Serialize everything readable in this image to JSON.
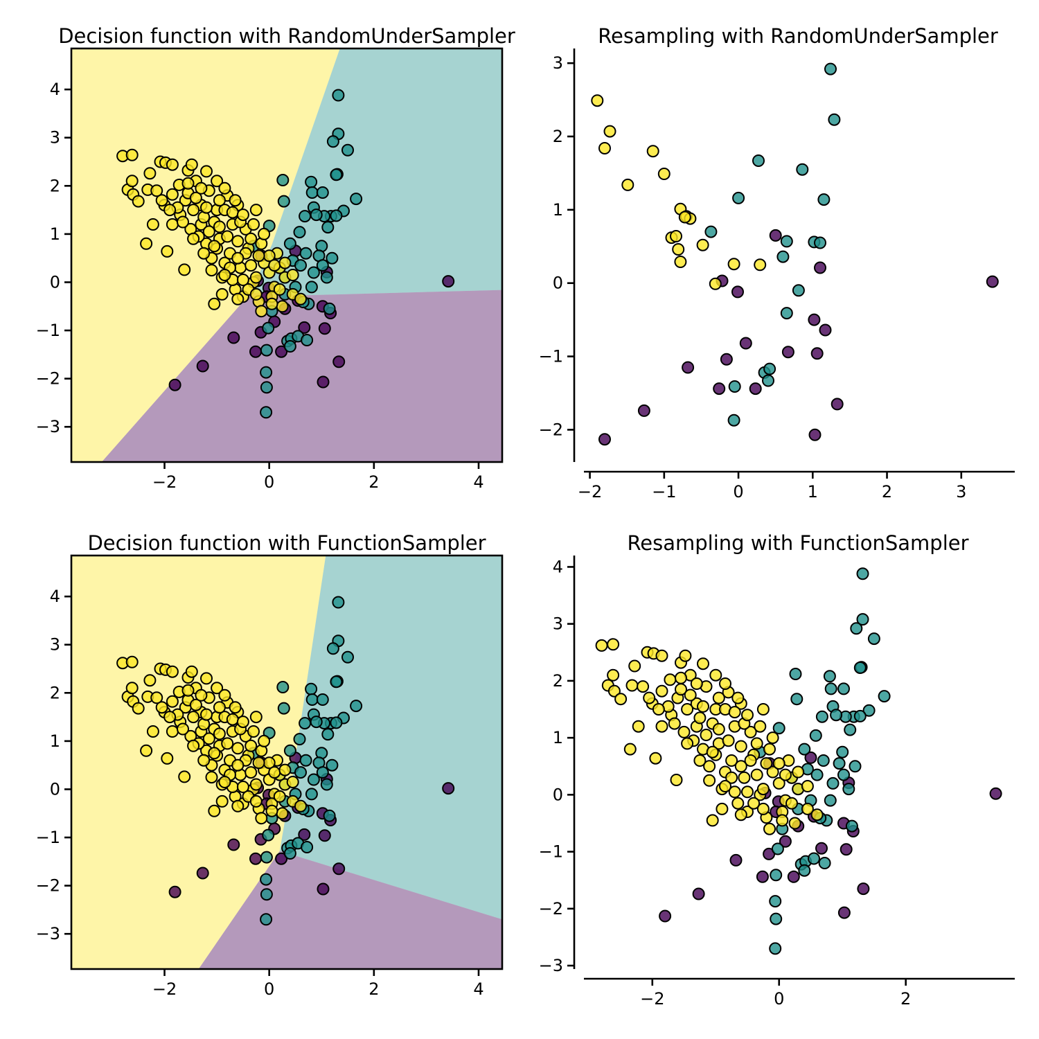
{
  "colors": {
    "class0": "#440154",
    "class1": "#21918c",
    "class2": "#fde725"
  },
  "chart_data": [
    {
      "type": "scatter",
      "id": "tl",
      "title": "Decision function with RandomUnderSampler",
      "boxed": true,
      "xlim": [
        -3.78,
        4.45
      ],
      "ylim": [
        -3.73,
        4.85
      ],
      "xticks": [
        -2,
        0,
        2,
        4
      ],
      "yticks": [
        -3,
        -2,
        -1,
        0,
        1,
        2,
        3,
        4
      ],
      "background_regions": [
        {
          "class": 2,
          "polygon": [
            [
              -3.78,
              -3.73
            ],
            [
              -3.78,
              4.85
            ],
            [
              1.35,
              4.85
            ],
            [
              0.05,
              0.78
            ],
            [
              -0.35,
              -0.22
            ],
            [
              -3.2,
              -3.73
            ]
          ]
        },
        {
          "class": 1,
          "polygon": [
            [
              1.35,
              4.85
            ],
            [
              4.45,
              4.85
            ],
            [
              4.45,
              -0.16
            ],
            [
              0.7,
              -0.27
            ],
            [
              -0.35,
              -0.22
            ],
            [
              0.05,
              0.78
            ]
          ]
        },
        {
          "class": 0,
          "polygon": [
            [
              -3.2,
              -3.73
            ],
            [
              -0.35,
              -0.22
            ],
            [
              0.7,
              -0.27
            ],
            [
              4.45,
              -0.16
            ],
            [
              4.45,
              -3.73
            ]
          ]
        }
      ],
      "dataset": "full"
    },
    {
      "type": "scatter",
      "id": "tr",
      "title": "Resampling with RandomUnderSampler",
      "boxed": false,
      "xlim": [
        -2.08,
        3.72
      ],
      "ylim": [
        -2.44,
        3.2
      ],
      "xticks": [
        -2,
        -1,
        0,
        1,
        2,
        3
      ],
      "yticks": [
        -2,
        -1,
        0,
        1,
        2,
        3
      ],
      "series": [
        {
          "name": "class 0",
          "class": 0,
          "points": [
            [
              -0.22,
              0.03
            ],
            [
              -0.01,
              -0.12
            ],
            [
              0.5,
              0.65
            ],
            [
              1.1,
              0.21
            ],
            [
              1.17,
              -0.64
            ],
            [
              1.02,
              -0.5
            ],
            [
              0.1,
              -0.82
            ],
            [
              -0.16,
              -1.04
            ],
            [
              0.67,
              -0.94
            ],
            [
              1.06,
              -0.96
            ],
            [
              -0.68,
              -1.15
            ],
            [
              -0.26,
              -1.44
            ],
            [
              0.23,
              -1.44
            ],
            [
              -1.27,
              -1.74
            ],
            [
              1.33,
              -1.65
            ],
            [
              -1.8,
              -2.13
            ],
            [
              1.03,
              -2.07
            ],
            [
              3.42,
              0.02
            ]
          ]
        },
        {
          "name": "class 1",
          "class": 1,
          "points": [
            [
              1.24,
              2.92
            ],
            [
              1.29,
              2.23
            ],
            [
              0.27,
              1.67
            ],
            [
              0.86,
              1.55
            ],
            [
              0.0,
              1.16
            ],
            [
              1.15,
              1.14
            ],
            [
              -0.37,
              0.7
            ],
            [
              0.65,
              0.57
            ],
            [
              1.02,
              0.56
            ],
            [
              1.1,
              0.55
            ],
            [
              0.6,
              0.36
            ],
            [
              0.81,
              -0.1
            ],
            [
              0.65,
              -0.41
            ],
            [
              0.35,
              -1.22
            ],
            [
              0.42,
              -1.17
            ],
            [
              0.4,
              -1.33
            ],
            [
              -0.05,
              -1.41
            ],
            [
              -0.06,
              -1.87
            ]
          ]
        },
        {
          "name": "class 2",
          "class": 2,
          "points": [
            [
              -1.9,
              2.49
            ],
            [
              -1.8,
              1.84
            ],
            [
              -1.73,
              2.07
            ],
            [
              -1.15,
              1.8
            ],
            [
              -1.0,
              1.49
            ],
            [
              -1.49,
              1.34
            ],
            [
              -0.78,
              1.01
            ],
            [
              -0.7,
              0.91
            ],
            [
              -0.65,
              0.88
            ],
            [
              -0.9,
              0.62
            ],
            [
              -0.81,
              0.46
            ],
            [
              -0.78,
              0.29
            ],
            [
              -0.48,
              0.52
            ],
            [
              -0.84,
              0.64
            ],
            [
              -0.31,
              -0.01
            ],
            [
              -0.06,
              0.26
            ],
            [
              0.29,
              0.25
            ],
            [
              -0.72,
              0.9
            ]
          ]
        }
      ]
    },
    {
      "type": "scatter",
      "id": "bl",
      "title": "Decision function with FunctionSampler",
      "boxed": true,
      "xlim": [
        -3.78,
        4.45
      ],
      "ylim": [
        -3.73,
        4.85
      ],
      "xticks": [
        -2,
        0,
        2,
        4
      ],
      "yticks": [
        -3,
        -2,
        -1,
        0,
        1,
        2,
        3,
        4
      ],
      "background_regions": [
        {
          "class": 2,
          "polygon": [
            [
              -3.78,
              -3.73
            ],
            [
              -3.78,
              4.85
            ],
            [
              1.08,
              4.85
            ],
            [
              0.45,
              0.3
            ],
            [
              0.2,
              -1.28
            ],
            [
              -1.35,
              -3.73
            ]
          ]
        },
        {
          "class": 1,
          "polygon": [
            [
              1.08,
              4.85
            ],
            [
              4.45,
              4.85
            ],
            [
              4.45,
              -2.7
            ],
            [
              0.2,
              -1.28
            ],
            [
              0.45,
              0.3
            ]
          ]
        },
        {
          "class": 0,
          "polygon": [
            [
              -1.35,
              -3.73
            ],
            [
              0.2,
              -1.28
            ],
            [
              4.45,
              -2.7
            ],
            [
              4.45,
              -3.73
            ]
          ]
        }
      ],
      "dataset": "full"
    },
    {
      "type": "scatter",
      "id": "br",
      "title": "Resampling with FunctionSampler",
      "boxed": false,
      "xlim": [
        -3.08,
        3.72
      ],
      "ylim": [
        -3.06,
        4.2
      ],
      "xticks": [
        -2,
        0,
        2
      ],
      "yticks": [
        -3,
        -2,
        -1,
        0,
        1,
        2,
        3,
        4
      ],
      "dataset": "full"
    }
  ],
  "full_dataset": {
    "class0": [
      [
        3.42,
        0.02
      ],
      [
        -0.22,
        0.03
      ],
      [
        1.1,
        0.21
      ],
      [
        0.5,
        0.65
      ],
      [
        -0.01,
        -0.12
      ],
      [
        1.17,
        -0.64
      ],
      [
        1.02,
        -0.5
      ],
      [
        0.1,
        -0.82
      ],
      [
        -0.16,
        -1.04
      ],
      [
        0.67,
        -0.94
      ],
      [
        1.06,
        -0.96
      ],
      [
        -0.68,
        -1.15
      ],
      [
        -0.26,
        -1.44
      ],
      [
        0.23,
        -1.44
      ],
      [
        -1.27,
        -1.74
      ],
      [
        1.33,
        -1.65
      ],
      [
        -1.8,
        -2.13
      ],
      [
        1.03,
        -2.07
      ],
      [
        -0.05,
        -0.3
      ],
      [
        0.55,
        -0.38
      ],
      [
        0.3,
        -0.55
      ],
      [
        -0.15,
        0.55
      ]
    ],
    "class1": [
      [
        1.32,
        3.88
      ],
      [
        1.32,
        3.08
      ],
      [
        1.22,
        2.92
      ],
      [
        1.5,
        2.74
      ],
      [
        1.3,
        2.24
      ],
      [
        1.28,
        2.23
      ],
      [
        0.26,
        2.12
      ],
      [
        0.8,
        2.08
      ],
      [
        0.82,
        1.86
      ],
      [
        0.28,
        1.68
      ],
      [
        1.02,
        1.86
      ],
      [
        1.66,
        1.73
      ],
      [
        0.85,
        1.55
      ],
      [
        1.42,
        1.48
      ],
      [
        1.18,
        1.37
      ],
      [
        0.68,
        1.37
      ],
      [
        1.05,
        1.37
      ],
      [
        1.28,
        1.38
      ],
      [
        0.0,
        1.17
      ],
      [
        1.12,
        1.14
      ],
      [
        0.58,
        1.04
      ],
      [
        0.2,
        0.3
      ],
      [
        0.4,
        0.8
      ],
      [
        1.0,
        0.75
      ],
      [
        0.7,
        0.6
      ],
      [
        1.2,
        0.5
      ],
      [
        0.85,
        0.2
      ],
      [
        0.45,
        0.45
      ],
      [
        0.95,
        0.55
      ],
      [
        0.6,
        0.35
      ],
      [
        0.3,
        0.1
      ],
      [
        1.1,
        0.1
      ],
      [
        0.5,
        -0.1
      ],
      [
        0.75,
        -0.45
      ],
      [
        0.3,
        -0.25
      ],
      [
        1.02,
        0.35
      ],
      [
        0.65,
        -0.41
      ],
      [
        0.81,
        -0.1
      ],
      [
        0.35,
        -1.22
      ],
      [
        0.42,
        -1.17
      ],
      [
        0.4,
        -1.33
      ],
      [
        -0.05,
        -1.41
      ],
      [
        -0.06,
        -1.87
      ],
      [
        -0.05,
        -2.18
      ],
      [
        -0.06,
        -2.7
      ],
      [
        0.55,
        -1.12
      ],
      [
        0.72,
        -1.2
      ],
      [
        -0.02,
        -0.95
      ],
      [
        -0.3,
        0.75
      ],
      [
        0.05,
        -0.6
      ],
      [
        0.9,
        1.4
      ],
      [
        1.15,
        -0.55
      ]
    ],
    "class2": [
      [
        -2.8,
        2.62
      ],
      [
        -2.62,
        2.64
      ],
      [
        -2.7,
        1.92
      ],
      [
        -2.62,
        2.1
      ],
      [
        -2.6,
        1.82
      ],
      [
        -2.5,
        1.68
      ],
      [
        -2.32,
        1.92
      ],
      [
        -2.28,
        2.26
      ],
      [
        -2.22,
        1.2
      ],
      [
        -2.35,
        0.8
      ],
      [
        -2.08,
        2.5
      ],
      [
        -1.98,
        2.48
      ],
      [
        -1.85,
        2.44
      ],
      [
        -2.0,
        1.6
      ],
      [
        -1.85,
        1.82
      ],
      [
        -1.95,
        0.64
      ],
      [
        -1.72,
        2.02
      ],
      [
        -1.62,
        0.26
      ],
      [
        -1.55,
        2.32
      ],
      [
        -1.48,
        2.44
      ],
      [
        -1.4,
        2.1
      ],
      [
        -1.3,
        1.2
      ],
      [
        -1.15,
        1.9
      ],
      [
        -1.0,
        1.5
      ],
      [
        -1.2,
        0.8
      ],
      [
        -1.7,
        1.4
      ],
      [
        -1.5,
        1.1
      ],
      [
        -1.3,
        1.6
      ],
      [
        -1.1,
        0.5
      ],
      [
        -0.95,
        0.9
      ],
      [
        -0.85,
        0.4
      ],
      [
        -0.8,
        1.8
      ],
      [
        -0.7,
        1.2
      ],
      [
        -0.6,
        1.6
      ],
      [
        -0.55,
        0.3
      ],
      [
        -0.4,
        0.7
      ],
      [
        -0.25,
        1.5
      ],
      [
        -0.3,
        0.0
      ],
      [
        -0.1,
        0.4
      ],
      [
        0.0,
        0.2
      ],
      [
        0.1,
        -0.1
      ],
      [
        0.3,
        0.1
      ],
      [
        -0.5,
        -0.3
      ],
      [
        -0.2,
        -0.4
      ],
      [
        0.05,
        -0.3
      ],
      [
        -0.9,
        0.1
      ],
      [
        -1.05,
        -0.45
      ],
      [
        -0.75,
        0.6
      ],
      [
        -0.65,
        -0.15
      ],
      [
        -0.35,
        0.35
      ],
      [
        -1.25,
        1.35
      ],
      [
        -0.45,
        1.1
      ],
      [
        -1.6,
        1.7
      ],
      [
        -1.45,
        1.5
      ],
      [
        -1.05,
        1.25
      ],
      [
        -0.85,
        1.5
      ],
      [
        -1.35,
        0.95
      ],
      [
        -0.6,
        0.85
      ],
      [
        0.15,
        0.6
      ],
      [
        -0.15,
        -0.6
      ],
      [
        0.45,
        -0.25
      ],
      [
        0.25,
        -0.5
      ],
      [
        -1.85,
        1.2
      ],
      [
        -1.65,
        1.25
      ],
      [
        -1.55,
        1.85
      ],
      [
        -1.15,
        1.05
      ],
      [
        -0.95,
        1.15
      ],
      [
        -0.75,
        0.3
      ],
      [
        -0.45,
        0.6
      ],
      [
        -0.25,
        0.1
      ],
      [
        0.0,
        0.55
      ],
      [
        0.2,
        0.3
      ],
      [
        -1.75,
        1.55
      ],
      [
        -1.4,
        1.75
      ],
      [
        -1.2,
        1.55
      ],
      [
        -1.0,
        0.7
      ],
      [
        -0.8,
        0.95
      ],
      [
        -0.55,
        1.25
      ],
      [
        -0.35,
        0.9
      ],
      [
        -0.15,
        0.8
      ],
      [
        0.1,
        0.35
      ],
      [
        -0.6,
        -0.35
      ],
      [
        -0.4,
        -0.15
      ],
      [
        -1.1,
        0.25
      ],
      [
        -0.9,
        -0.25
      ],
      [
        -0.7,
        0.05
      ],
      [
        -1.3,
        1.95
      ],
      [
        -1.55,
        2.05
      ],
      [
        -0.95,
        1.7
      ],
      [
        -0.7,
        1.45
      ],
      [
        -0.3,
        1.2
      ],
      [
        -0.1,
        1.0
      ],
      [
        0.45,
        0.15
      ],
      [
        0.6,
        -0.35
      ],
      [
        -1.0,
        2.1
      ],
      [
        -1.2,
        2.3
      ],
      [
        -0.85,
        1.95
      ],
      [
        -0.65,
        1.7
      ],
      [
        -0.5,
        1.4
      ],
      [
        -1.9,
        1.5
      ],
      [
        -2.05,
        1.7
      ],
      [
        -2.15,
        1.9
      ],
      [
        -1.45,
        0.9
      ],
      [
        -1.25,
        0.6
      ],
      [
        -1.05,
        0.75
      ],
      [
        -0.85,
        0.15
      ],
      [
        -0.5,
        0.05
      ],
      [
        -0.25,
        -0.25
      ],
      [
        0.05,
        -0.45
      ],
      [
        0.2,
        -0.15
      ],
      [
        0.3,
        0.4
      ],
      [
        -0.6,
        0.5
      ],
      [
        -0.2,
        0.55
      ]
    ]
  }
}
